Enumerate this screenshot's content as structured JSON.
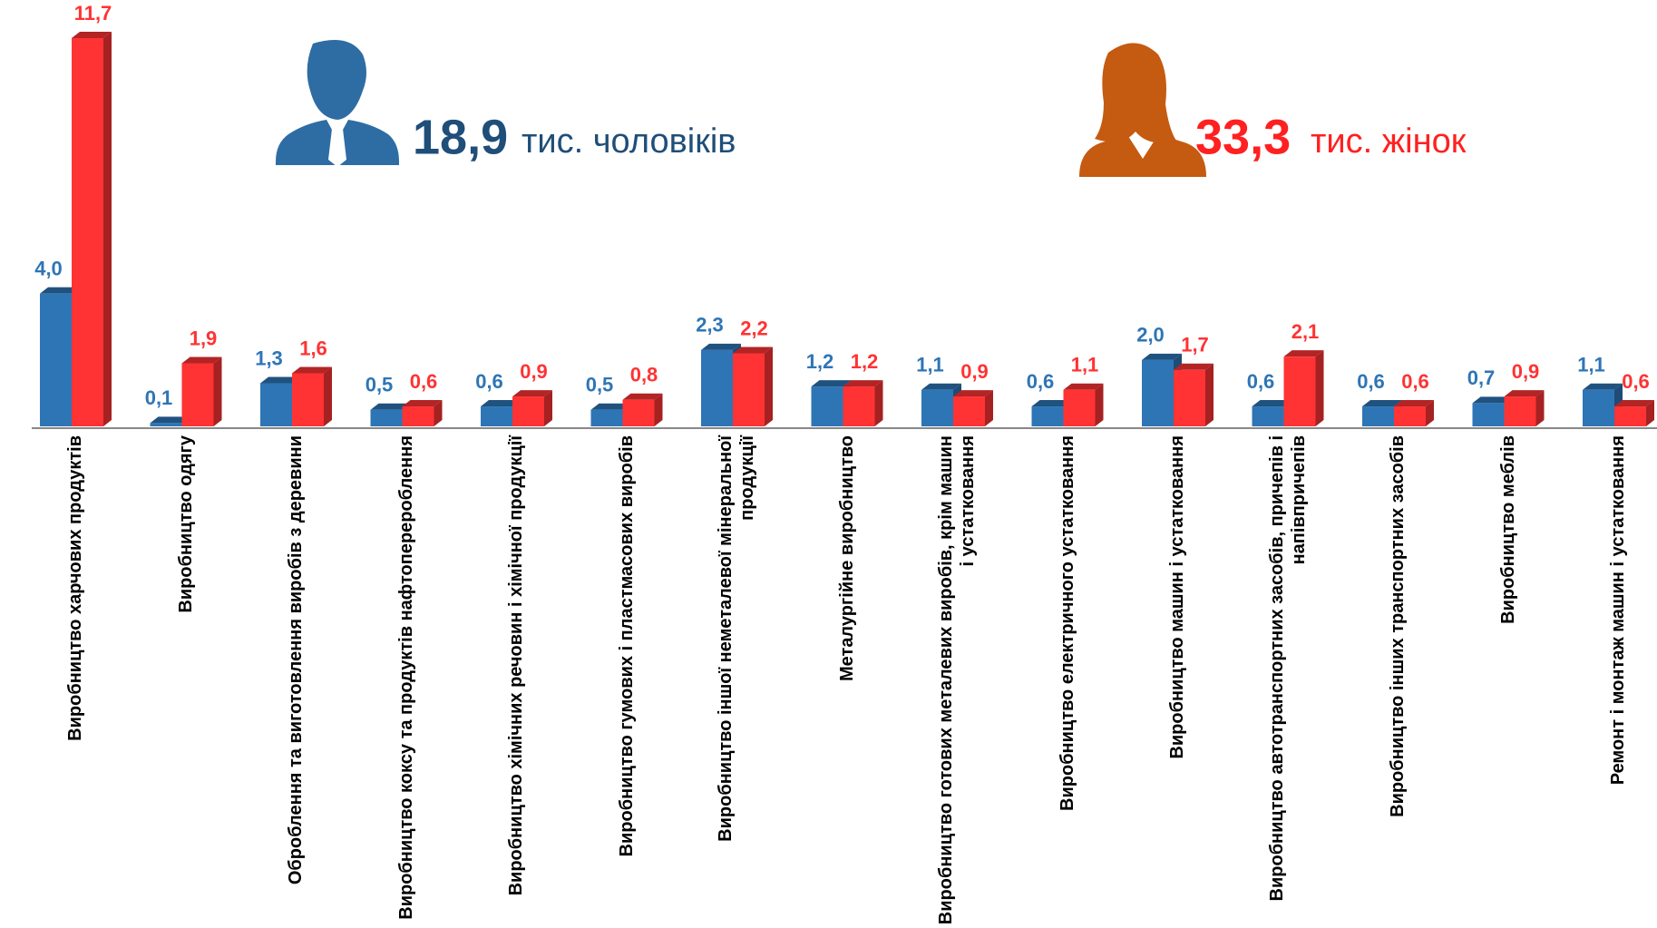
{
  "chart_data": {
    "type": "bar3d",
    "categories": [
      "Виробництво харчових продуктів",
      "Виробництво одягу",
      "Оброблення та виготовлення виробів з деревини",
      "Виробництво коксу та продуктів нафтоперероблення",
      "Виробництво хімічних речовин і хімічної продукції",
      "Виробництво гумових і пластмасових виробів",
      "Виробництво іншої неметалевої мінеральної продукції",
      "Металургійне виробництво",
      "Виробництво готових металевих виробів, крім машин і устатковання",
      "Виробництво електричного устатковання",
      "Виробництво машин і устатковання",
      "Виробництво автотранспортних засобів, причепів і напівпричепів",
      "Виробництво інших транспортних засобів",
      "Виробництво меблів",
      "Ремонт і монтаж машин і устатковання"
    ],
    "series": [
      {
        "color": "#2e75b6",
        "values": [
          4.0,
          0.1,
          1.3,
          0.5,
          0.6,
          0.5,
          2.3,
          1.2,
          1.1,
          0.6,
          2.0,
          0.6,
          0.6,
          0.7,
          1.1
        ],
        "value_labels": [
          "4,0",
          "0,1",
          "1,3",
          "0,5",
          "0,6",
          "0,5",
          "2,3",
          "1,2",
          "1,1",
          "0,6",
          "2,0",
          "0,6",
          "0,6",
          "0,7",
          "1,1"
        ]
      },
      {
        "color": "#ff3333",
        "values": [
          11.7,
          1.9,
          1.6,
          0.6,
          0.9,
          0.8,
          2.2,
          1.2,
          0.9,
          1.1,
          1.7,
          2.1,
          0.6,
          0.9,
          0.6
        ],
        "value_labels": [
          "11,7",
          "1,9",
          "1,6",
          "0,6",
          "0,9",
          "0,8",
          "2,2",
          "1,2",
          "0,9",
          "1,1",
          "1,7",
          "2,1",
          "0,6",
          "0,9",
          "0,6"
        ]
      }
    ],
    "ylim": [
      0,
      12
    ],
    "annotations": [
      {
        "value": "18,9",
        "text": "тис. чоловіків",
        "color": "#1f4e79"
      },
      {
        "value": "33,3",
        "text": "тис. жінок",
        "color": "#ff2020"
      }
    ]
  }
}
